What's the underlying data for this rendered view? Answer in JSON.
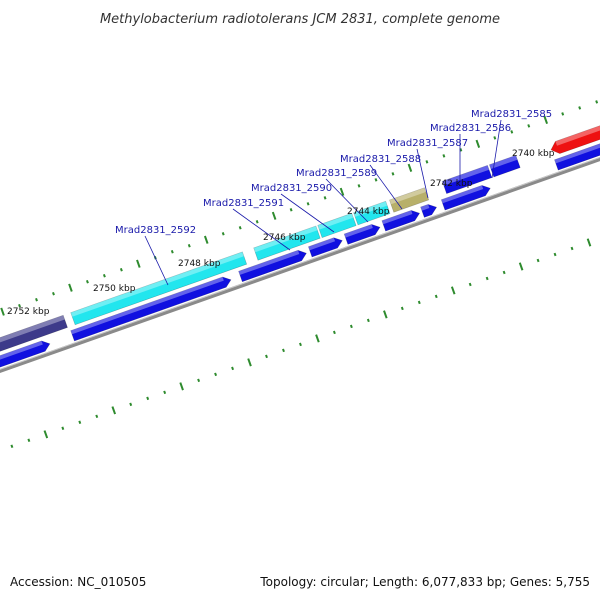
{
  "title": "Methylobacterium radiotolerans JCM 2831, complete genome",
  "footer": {
    "accession": "Accession: NC_010505",
    "summary": "Topology: circular; Length: 6,077,833 bp; Genes: 5,755"
  },
  "colors": {
    "backbone": "#8a8a8a",
    "tick": "#2e8b2e",
    "gene_label": "#1a1aaa",
    "cds": "#1010e0",
    "cyan_feature": "#22e6ee",
    "slate_feature": "#3d3a8a",
    "khaki_feature": "#b8b06a",
    "red_feature": "#ee1111"
  },
  "ruler": {
    "unit": "kbp",
    "labels": [
      {
        "value": 2740,
        "text": "2740 kbp"
      },
      {
        "value": 2742,
        "text": "2742 kbp"
      },
      {
        "value": 2744,
        "text": "2744 kbp"
      },
      {
        "value": 2746,
        "text": "2746 kbp"
      },
      {
        "value": 2748,
        "text": "2748 kbp"
      },
      {
        "value": 2750,
        "text": "2750 kbp"
      },
      {
        "value": 2752,
        "text": "2752 kbp"
      }
    ]
  },
  "genes": [
    {
      "locus": "Mrad2831_2585"
    },
    {
      "locus": "Mrad2831_2586"
    },
    {
      "locus": "Mrad2831_2587"
    },
    {
      "locus": "Mrad2831_2588"
    },
    {
      "locus": "Mrad2831_2589"
    },
    {
      "locus": "Mrad2831_2590"
    },
    {
      "locus": "Mrad2831_2591"
    },
    {
      "locus": "Mrad2831_2592"
    }
  ]
}
